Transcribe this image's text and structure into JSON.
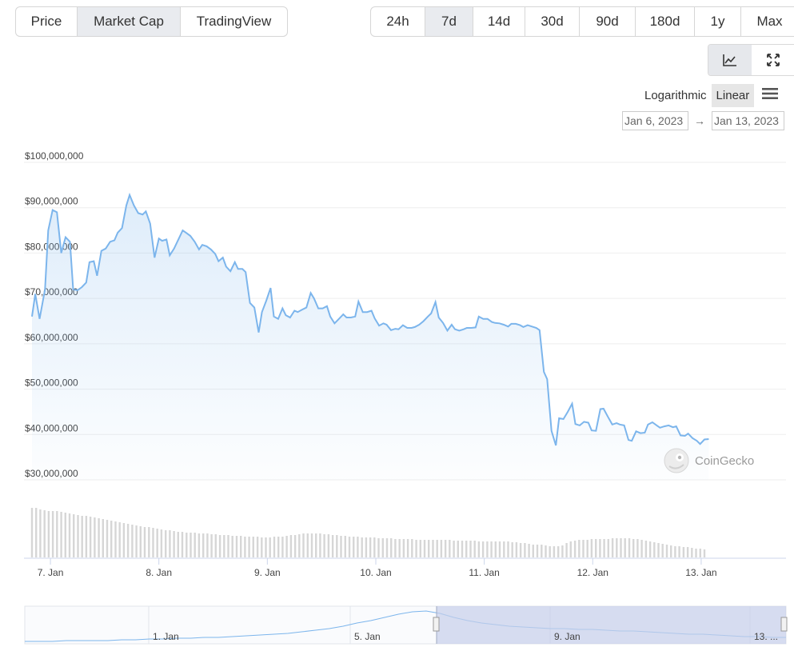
{
  "tabs": [
    {
      "label": "Price",
      "active": false
    },
    {
      "label": "Market Cap",
      "active": true
    },
    {
      "label": "TradingView",
      "active": false
    }
  ],
  "ranges": [
    {
      "label": "24h",
      "active": false
    },
    {
      "label": "7d",
      "active": true
    },
    {
      "label": "14d",
      "active": false
    },
    {
      "label": "30d",
      "active": false
    },
    {
      "label": "90d",
      "active": false
    },
    {
      "label": "180d",
      "active": false
    },
    {
      "label": "1y",
      "active": false
    },
    {
      "label": "Max",
      "active": false
    }
  ],
  "chart_type_buttons": {
    "line_icon": "line-chart-icon",
    "expand_icon": "expand-icon",
    "active": "line"
  },
  "scale": {
    "log_label": "Logarithmic",
    "linear_label": "Linear",
    "active": "Linear"
  },
  "date_range": {
    "from": "Jan 6, 2023",
    "arrow": "→",
    "to": "Jan 13, 2023"
  },
  "watermark": {
    "text": "CoinGecko"
  },
  "colors": {
    "line": "#7cb5ec",
    "active_tab": "#e9ebef",
    "navigator_mask": "#c6cfea"
  },
  "chart_data": {
    "type": "area",
    "y_ticks": [
      "$100,000,000",
      "$90,000,000",
      "$80,000,000",
      "$70,000,000",
      "$60,000,000",
      "$50,000,000",
      "$40,000,000",
      "$30,000,000"
    ],
    "ylim": [
      30000000,
      100000000
    ],
    "x_ticks": [
      "7. Jan",
      "8. Jan",
      "9. Jan",
      "10. Jan",
      "11. Jan",
      "12. Jan",
      "13. Jan"
    ],
    "x_days": [
      7,
      8,
      9,
      10,
      11,
      12,
      13
    ],
    "xlim": [
      6.83,
      13.76
    ],
    "grid": true,
    "series": [
      {
        "values": [
          [
            6.83,
            66000000
          ],
          [
            6.86,
            71000000
          ],
          [
            6.9,
            65500000
          ],
          [
            6.95,
            72000000
          ],
          [
            6.98,
            85000000
          ],
          [
            7.02,
            89500000
          ],
          [
            7.06,
            89000000
          ],
          [
            7.1,
            80000000
          ],
          [
            7.14,
            83500000
          ],
          [
            7.18,
            82500000
          ],
          [
            7.21,
            72000000
          ],
          [
            7.25,
            71800000
          ],
          [
            7.29,
            72500000
          ],
          [
            7.33,
            73500000
          ],
          [
            7.36,
            78000000
          ],
          [
            7.4,
            78200000
          ],
          [
            7.43,
            75000000
          ],
          [
            7.47,
            80500000
          ],
          [
            7.51,
            81000000
          ],
          [
            7.55,
            82500000
          ],
          [
            7.59,
            82800000
          ],
          [
            7.62,
            84500000
          ],
          [
            7.66,
            85500000
          ],
          [
            7.7,
            90500000
          ],
          [
            7.73,
            92800000
          ],
          [
            7.77,
            90500000
          ],
          [
            7.81,
            88800000
          ],
          [
            7.85,
            88500000
          ],
          [
            7.88,
            89200000
          ],
          [
            7.92,
            86500000
          ],
          [
            7.96,
            79000000
          ],
          [
            8.0,
            83200000
          ],
          [
            8.03,
            82700000
          ],
          [
            8.07,
            83000000
          ],
          [
            8.1,
            79500000
          ],
          [
            8.14,
            81000000
          ],
          [
            8.18,
            83000000
          ],
          [
            8.22,
            85000000
          ],
          [
            8.25,
            84500000
          ],
          [
            8.29,
            83800000
          ],
          [
            8.33,
            82500000
          ],
          [
            8.37,
            80800000
          ],
          [
            8.4,
            81800000
          ],
          [
            8.44,
            81500000
          ],
          [
            8.48,
            80800000
          ],
          [
            8.52,
            79800000
          ],
          [
            8.55,
            78200000
          ],
          [
            8.59,
            79000000
          ],
          [
            8.62,
            77000000
          ],
          [
            8.66,
            76000000
          ],
          [
            8.7,
            78000000
          ],
          [
            8.73,
            76500000
          ],
          [
            8.77,
            76500000
          ],
          [
            8.8,
            75800000
          ],
          [
            8.84,
            69000000
          ],
          [
            8.88,
            68000000
          ],
          [
            8.92,
            62500000
          ],
          [
            8.95,
            67000000
          ],
          [
            8.99,
            69500000
          ],
          [
            9.03,
            72300000
          ],
          [
            9.06,
            66000000
          ],
          [
            9.1,
            65500000
          ],
          [
            9.14,
            67800000
          ],
          [
            9.17,
            66300000
          ],
          [
            9.21,
            65800000
          ],
          [
            9.25,
            67300000
          ],
          [
            9.28,
            67000000
          ],
          [
            9.32,
            67500000
          ],
          [
            9.36,
            68000000
          ],
          [
            9.4,
            71200000
          ],
          [
            9.43,
            70000000
          ],
          [
            9.47,
            67800000
          ],
          [
            9.51,
            67800000
          ],
          [
            9.55,
            68300000
          ],
          [
            9.58,
            66000000
          ],
          [
            9.62,
            64500000
          ],
          [
            9.66,
            65500000
          ],
          [
            9.7,
            66500000
          ],
          [
            9.73,
            65800000
          ],
          [
            9.77,
            65800000
          ],
          [
            9.81,
            66000000
          ],
          [
            9.84,
            69300000
          ],
          [
            9.88,
            67000000
          ],
          [
            9.92,
            67000000
          ],
          [
            9.96,
            67300000
          ],
          [
            9.99,
            65600000
          ],
          [
            10.03,
            64000000
          ],
          [
            10.07,
            64500000
          ],
          [
            10.1,
            64200000
          ],
          [
            10.14,
            63000000
          ],
          [
            10.18,
            63300000
          ],
          [
            10.21,
            63200000
          ],
          [
            10.25,
            64100000
          ],
          [
            10.29,
            63500000
          ],
          [
            10.33,
            63500000
          ],
          [
            10.36,
            63700000
          ],
          [
            10.4,
            64200000
          ],
          [
            10.44,
            65000000
          ],
          [
            10.48,
            66000000
          ],
          [
            10.51,
            66700000
          ],
          [
            10.55,
            69200000
          ],
          [
            10.58,
            65800000
          ],
          [
            10.62,
            64600000
          ],
          [
            10.66,
            62900000
          ],
          [
            10.7,
            64200000
          ],
          [
            10.73,
            63200000
          ],
          [
            10.77,
            62900000
          ],
          [
            10.81,
            63200000
          ],
          [
            10.84,
            63500000
          ],
          [
            10.88,
            63500000
          ],
          [
            10.92,
            63600000
          ],
          [
            10.95,
            66000000
          ],
          [
            10.99,
            65500000
          ],
          [
            11.03,
            65500000
          ],
          [
            11.07,
            64800000
          ],
          [
            11.1,
            64600000
          ],
          [
            11.14,
            64500000
          ],
          [
            11.18,
            64200000
          ],
          [
            11.22,
            63800000
          ],
          [
            11.25,
            64400000
          ],
          [
            11.29,
            64400000
          ],
          [
            11.33,
            64100000
          ],
          [
            11.36,
            63700000
          ],
          [
            11.4,
            64100000
          ],
          [
            11.44,
            63800000
          ],
          [
            11.48,
            63500000
          ],
          [
            11.51,
            63000000
          ],
          [
            11.55,
            53800000
          ],
          [
            11.58,
            52200000
          ],
          [
            11.62,
            40800000
          ],
          [
            11.66,
            37600000
          ],
          [
            11.69,
            43600000
          ],
          [
            11.73,
            43400000
          ],
          [
            11.77,
            45000000
          ],
          [
            11.81,
            46800000
          ],
          [
            11.84,
            42300000
          ],
          [
            11.88,
            42000000
          ],
          [
            11.92,
            42800000
          ],
          [
            11.96,
            42600000
          ],
          [
            11.99,
            40900000
          ],
          [
            12.03,
            40800000
          ],
          [
            12.07,
            45600000
          ],
          [
            12.1,
            45700000
          ],
          [
            12.14,
            43900000
          ],
          [
            12.18,
            42200000
          ],
          [
            12.22,
            42500000
          ],
          [
            12.25,
            42200000
          ],
          [
            12.29,
            42000000
          ],
          [
            12.33,
            38800000
          ],
          [
            12.36,
            38600000
          ],
          [
            12.4,
            40700000
          ],
          [
            12.44,
            40300000
          ],
          [
            12.48,
            40400000
          ],
          [
            12.51,
            42200000
          ],
          [
            12.55,
            42700000
          ],
          [
            12.59,
            42000000
          ],
          [
            12.62,
            41500000
          ],
          [
            12.66,
            41800000
          ],
          [
            12.7,
            42000000
          ],
          [
            12.74,
            41600000
          ],
          [
            12.77,
            41800000
          ],
          [
            12.81,
            39800000
          ],
          [
            12.85,
            39700000
          ],
          [
            12.88,
            40200000
          ],
          [
            12.92,
            39200000
          ],
          [
            12.96,
            38600000
          ],
          [
            12.99,
            37900000
          ],
          [
            13.03,
            38900000
          ],
          [
            13.07,
            39000000
          ]
        ]
      }
    ],
    "volume": {
      "x_start": 6.83,
      "x_end": 13.03,
      "values": [
        62,
        62,
        60,
        59,
        58,
        58,
        58,
        57,
        56,
        55,
        54,
        53,
        52,
        52,
        51,
        50,
        49,
        48,
        47,
        46,
        45,
        44,
        43,
        42,
        41,
        40,
        39,
        38,
        38,
        37,
        36,
        35,
        34,
        34,
        33,
        32,
        32,
        31,
        31,
        31,
        30,
        30,
        30,
        29,
        29,
        28,
        28,
        28,
        27,
        27,
        27,
        26,
        26,
        26,
        26,
        25,
        25,
        25,
        26,
        26,
        26,
        27,
        28,
        28,
        29,
        30,
        30,
        30,
        30,
        30,
        29,
        29,
        28,
        28,
        27,
        27,
        26,
        26,
        26,
        25,
        25,
        25,
        25,
        24,
        24,
        24,
        24,
        23,
        23,
        23,
        23,
        23,
        22,
        22,
        22,
        22,
        22,
        22,
        22,
        22,
        22,
        21,
        21,
        21,
        21,
        21,
        21,
        20,
        20,
        20,
        20,
        20,
        20,
        20,
        20,
        19,
        19,
        18,
        18,
        17,
        16,
        16,
        16,
        15,
        14,
        14,
        14,
        15,
        18,
        20,
        21,
        22,
        22,
        22,
        23,
        23,
        23,
        23,
        23,
        24,
        24,
        24,
        24,
        24,
        23,
        23,
        22,
        21,
        20,
        19,
        18,
        17,
        16,
        15,
        14,
        14,
        13,
        13,
        12,
        11,
        11,
        10
      ]
    },
    "navigator": {
      "x_ticks": [
        "1. Jan",
        "5. Jan",
        "9. Jan",
        "13. ..."
      ]
    }
  }
}
